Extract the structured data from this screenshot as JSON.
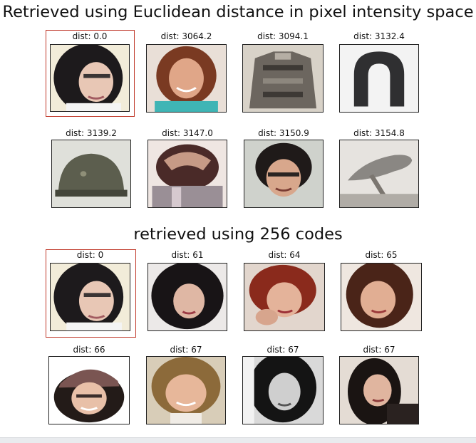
{
  "sections": [
    {
      "title": "Retrieved using Euclidean distance in pixel intensity space",
      "results": [
        {
          "dist": "dist: 0.0",
          "image": "face-dark-hair-glasses-photo",
          "selected": true
        },
        {
          "dist": "dist: 3064.2",
          "image": "face-smiling-woman-photo"
        },
        {
          "dist": "dist: 3094.1",
          "image": "knit-sweater-photo"
        },
        {
          "dist": "dist: 3132.4",
          "image": "horseshoe-photo"
        },
        {
          "dist": "dist: 3139.2",
          "image": "helmet-photo"
        },
        {
          "dist": "dist: 3147.0",
          "image": "hands-on-head-photo"
        },
        {
          "dist": "dist: 3150.9",
          "image": "face-woman-glasses-photo"
        },
        {
          "dist": "dist: 3154.8",
          "image": "bicycle-seat-photo"
        }
      ]
    },
    {
      "title": "retrieved using 256 codes",
      "results": [
        {
          "dist": "dist: 0",
          "image": "face-dark-hair-glasses-photo",
          "selected": true
        },
        {
          "dist": "dist: 61",
          "image": "face-curly-dark-hair-photo"
        },
        {
          "dist": "dist: 64",
          "image": "face-red-hair-photo"
        },
        {
          "dist": "dist: 65",
          "image": "face-brown-hair-photo"
        },
        {
          "dist": "dist: 66",
          "image": "face-cap-hat-photo"
        },
        {
          "dist": "dist: 67",
          "image": "face-blonde-hair-photo"
        },
        {
          "dist": "dist: 67",
          "image": "face-grayscale-photo"
        },
        {
          "dist": "dist: 67",
          "image": "face-long-dark-hair-photo"
        }
      ]
    }
  ]
}
